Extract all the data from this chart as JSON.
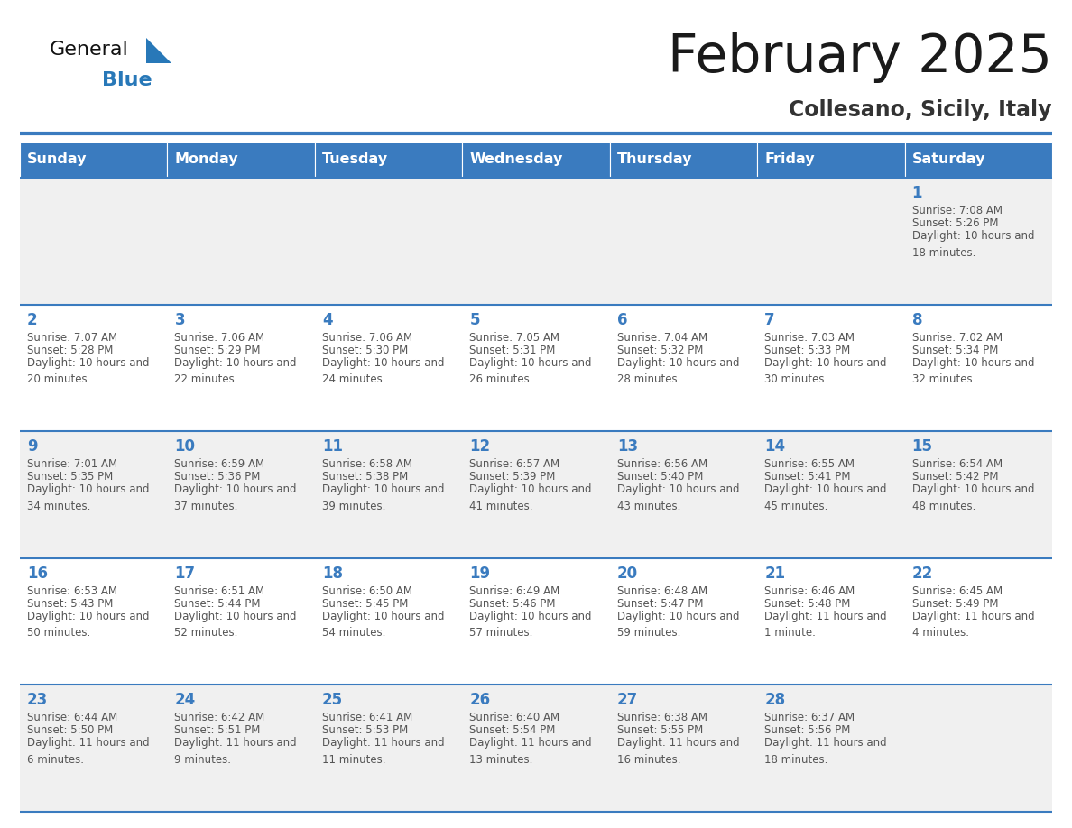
{
  "title": "February 2025",
  "subtitle": "Collesano, Sicily, Italy",
  "days_of_week": [
    "Sunday",
    "Monday",
    "Tuesday",
    "Wednesday",
    "Thursday",
    "Friday",
    "Saturday"
  ],
  "header_bg": "#3a7bbf",
  "header_text": "#ffffff",
  "row_bg_light": "#f0f0f0",
  "row_bg_white": "#ffffff",
  "cell_border": "#3a7bbf",
  "day_number_color": "#3a7bbf",
  "info_text_color": "#555555",
  "title_color": "#1a1a1a",
  "subtitle_color": "#333333",
  "logo_general_color": "#111111",
  "logo_blue_color": "#2878b8",
  "weeks": [
    {
      "days": [
        null,
        null,
        null,
        null,
        null,
        null,
        1
      ]
    },
    {
      "days": [
        2,
        3,
        4,
        5,
        6,
        7,
        8
      ]
    },
    {
      "days": [
        9,
        10,
        11,
        12,
        13,
        14,
        15
      ]
    },
    {
      "days": [
        16,
        17,
        18,
        19,
        20,
        21,
        22
      ]
    },
    {
      "days": [
        23,
        24,
        25,
        26,
        27,
        28,
        null
      ]
    }
  ],
  "sun_data": {
    "1": {
      "sunrise": "7:08 AM",
      "sunset": "5:26 PM",
      "daylight": "10 hours and 18 minutes"
    },
    "2": {
      "sunrise": "7:07 AM",
      "sunset": "5:28 PM",
      "daylight": "10 hours and 20 minutes"
    },
    "3": {
      "sunrise": "7:06 AM",
      "sunset": "5:29 PM",
      "daylight": "10 hours and 22 minutes"
    },
    "4": {
      "sunrise": "7:06 AM",
      "sunset": "5:30 PM",
      "daylight": "10 hours and 24 minutes"
    },
    "5": {
      "sunrise": "7:05 AM",
      "sunset": "5:31 PM",
      "daylight": "10 hours and 26 minutes"
    },
    "6": {
      "sunrise": "7:04 AM",
      "sunset": "5:32 PM",
      "daylight": "10 hours and 28 minutes"
    },
    "7": {
      "sunrise": "7:03 AM",
      "sunset": "5:33 PM",
      "daylight": "10 hours and 30 minutes"
    },
    "8": {
      "sunrise": "7:02 AM",
      "sunset": "5:34 PM",
      "daylight": "10 hours and 32 minutes"
    },
    "9": {
      "sunrise": "7:01 AM",
      "sunset": "5:35 PM",
      "daylight": "10 hours and 34 minutes"
    },
    "10": {
      "sunrise": "6:59 AM",
      "sunset": "5:36 PM",
      "daylight": "10 hours and 37 minutes"
    },
    "11": {
      "sunrise": "6:58 AM",
      "sunset": "5:38 PM",
      "daylight": "10 hours and 39 minutes"
    },
    "12": {
      "sunrise": "6:57 AM",
      "sunset": "5:39 PM",
      "daylight": "10 hours and 41 minutes"
    },
    "13": {
      "sunrise": "6:56 AM",
      "sunset": "5:40 PM",
      "daylight": "10 hours and 43 minutes"
    },
    "14": {
      "sunrise": "6:55 AM",
      "sunset": "5:41 PM",
      "daylight": "10 hours and 45 minutes"
    },
    "15": {
      "sunrise": "6:54 AM",
      "sunset": "5:42 PM",
      "daylight": "10 hours and 48 minutes"
    },
    "16": {
      "sunrise": "6:53 AM",
      "sunset": "5:43 PM",
      "daylight": "10 hours and 50 minutes"
    },
    "17": {
      "sunrise": "6:51 AM",
      "sunset": "5:44 PM",
      "daylight": "10 hours and 52 minutes"
    },
    "18": {
      "sunrise": "6:50 AM",
      "sunset": "5:45 PM",
      "daylight": "10 hours and 54 minutes"
    },
    "19": {
      "sunrise": "6:49 AM",
      "sunset": "5:46 PM",
      "daylight": "10 hours and 57 minutes"
    },
    "20": {
      "sunrise": "6:48 AM",
      "sunset": "5:47 PM",
      "daylight": "10 hours and 59 minutes"
    },
    "21": {
      "sunrise": "6:46 AM",
      "sunset": "5:48 PM",
      "daylight": "11 hours and 1 minute"
    },
    "22": {
      "sunrise": "6:45 AM",
      "sunset": "5:49 PM",
      "daylight": "11 hours and 4 minutes"
    },
    "23": {
      "sunrise": "6:44 AM",
      "sunset": "5:50 PM",
      "daylight": "11 hours and 6 minutes"
    },
    "24": {
      "sunrise": "6:42 AM",
      "sunset": "5:51 PM",
      "daylight": "11 hours and 9 minutes"
    },
    "25": {
      "sunrise": "6:41 AM",
      "sunset": "5:53 PM",
      "daylight": "11 hours and 11 minutes"
    },
    "26": {
      "sunrise": "6:40 AM",
      "sunset": "5:54 PM",
      "daylight": "11 hours and 13 minutes"
    },
    "27": {
      "sunrise": "6:38 AM",
      "sunset": "5:55 PM",
      "daylight": "11 hours and 16 minutes"
    },
    "28": {
      "sunrise": "6:37 AM",
      "sunset": "5:56 PM",
      "daylight": "11 hours and 18 minutes"
    }
  }
}
